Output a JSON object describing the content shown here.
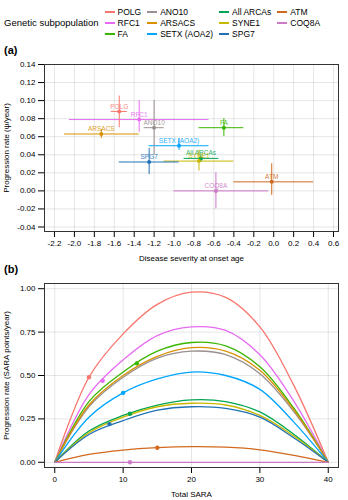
{
  "chart_data": [
    {
      "type": "scatter",
      "title": "(a)",
      "legend": "top",
      "legend_title": "Genetic subpopulation",
      "x_label": "Disease severity at onset age",
      "y_label": "Progression rate (ψ/year)",
      "xlim": [
        -2.3,
        0.65
      ],
      "xticks": [
        {
          "value": -2.2,
          "label": "-2.2"
        },
        {
          "value": -2.0,
          "label": "-2.0"
        },
        {
          "value": -1.8,
          "label": "-1.8"
        },
        {
          "value": -1.6,
          "label": "-1.6"
        },
        {
          "value": -1.4,
          "label": "-1.4"
        },
        {
          "value": -1.2,
          "label": "-1.2"
        },
        {
          "value": -1.0,
          "label": "-1.0"
        },
        {
          "value": -0.8,
          "label": "-0.8"
        },
        {
          "value": -0.6,
          "label": "-0.6"
        },
        {
          "value": -0.4,
          "label": "-0.4"
        },
        {
          "value": -0.2,
          "label": "-0.2"
        },
        {
          "value": 0,
          "label": "0.0"
        },
        {
          "value": 0.2,
          "label": "0.2"
        },
        {
          "value": 0.4,
          "label": "0.4"
        },
        {
          "value": 0.6,
          "label": "0.6"
        }
      ],
      "ylim": [
        -0.045,
        0.14
      ],
      "yticks": [
        {
          "value": -0.04,
          "label": "-0.04"
        },
        {
          "value": -0.02,
          "label": "-0.02"
        },
        {
          "value": 0,
          "label": "0.00"
        },
        {
          "value": 0.02,
          "label": "0.02"
        },
        {
          "value": 0.04,
          "label": "0.04"
        },
        {
          "value": 0.06,
          "label": "0.06"
        },
        {
          "value": 0.08,
          "label": "0.08"
        },
        {
          "value": 0.1,
          "label": "0.10"
        },
        {
          "value": 0.12,
          "label": "0.12"
        },
        {
          "value": 0.14,
          "label": "0.14"
        }
      ],
      "grid": true,
      "series": [
        {
          "name": "POLG",
          "color": "#F8766D",
          "x": -1.55,
          "y": 0.088,
          "x_error": [
            -1.63,
            -1.47
          ],
          "y_error": [
            0.07,
            0.105
          ]
        },
        {
          "name": "RFC1",
          "color": "#E76BF3",
          "x": -1.35,
          "y": 0.079,
          "x_error": [
            -2.05,
            -0.65
          ],
          "y_error": [
            0.065,
            0.1
          ]
        },
        {
          "name": "FA",
          "color": "#39B600",
          "x": -0.5,
          "y": 0.07,
          "x_error": [
            -0.75,
            -0.3
          ],
          "y_error": [
            0.06,
            0.08
          ]
        },
        {
          "name": "ANO10",
          "color": "#9A8F8F",
          "x": -1.2,
          "y": 0.07,
          "x_error": [
            -1.3,
            -1.1
          ],
          "y_error": [
            0.04,
            0.1
          ]
        },
        {
          "name": "ARSACS",
          "color": "#D89000",
          "x": -1.73,
          "y": 0.063,
          "x_error": [
            -2.1,
            -1.35
          ],
          "y_error": [
            0.058,
            0.068
          ]
        },
        {
          "name": "SETX (AOA2)",
          "color": "#00A5FF",
          "x": -0.95,
          "y": 0.05,
          "x_error": [
            -1.25,
            -0.65
          ],
          "y_error": [
            0.045,
            0.058
          ]
        },
        {
          "name": "All ARCAs",
          "color": "#00A651",
          "x": -0.73,
          "y": 0.036,
          "x_error": [
            -0.9,
            -0.55
          ],
          "y_error": [
            0.032,
            0.04
          ]
        },
        {
          "name": "SYNE1",
          "color": "#C9B800",
          "x": -0.75,
          "y": 0.033,
          "x_error": [
            -1.1,
            -0.4
          ],
          "y_error": [
            0.022,
            0.045
          ]
        },
        {
          "name": "SPG7",
          "color": "#2271B5",
          "x": -1.25,
          "y": 0.032,
          "x_error": [
            -1.55,
            -0.95
          ],
          "y_error": [
            0.018,
            0.047
          ]
        },
        {
          "name": "ATM",
          "color": "#D2691E",
          "x": -0.02,
          "y": 0.01,
          "x_error": [
            -0.4,
            0.4
          ],
          "y_error": [
            -0.005,
            0.03
          ]
        },
        {
          "name": "COQ8A",
          "color": "#CC79C7",
          "x": -0.58,
          "y": 0.0,
          "x_error": [
            -1.0,
            -0.05
          ],
          "y_error": [
            -0.02,
            0.02
          ]
        }
      ]
    },
    {
      "type": "line",
      "title": "(b)",
      "x_label": "Total SARA",
      "y_label": "Progression rate (SARA points/year)",
      "x": [
        0,
        5,
        10,
        15,
        20,
        25,
        30,
        35,
        40
      ],
      "xlim": [
        -1.5,
        41.5
      ],
      "xticks": [
        0,
        10,
        20,
        30,
        40
      ],
      "ylim": [
        -0.03,
        1.03
      ],
      "yticks": [
        {
          "value": 0,
          "label": "0.00"
        },
        {
          "value": 0.25,
          "label": "0.25"
        },
        {
          "value": 0.5,
          "label": "0.50"
        },
        {
          "value": 0.75,
          "label": "0.75"
        },
        {
          "value": 1,
          "label": "1.00"
        }
      ],
      "grid": true,
      "marker": "circle",
      "series": [
        {
          "name": "POLG",
          "color": "#F8766D",
          "values": [
            0,
            0.49,
            0.74,
            0.91,
            0.98,
            0.95,
            0.78,
            0.44,
            0
          ],
          "onset": [
            5,
            0.49
          ]
        },
        {
          "name": "RFC1",
          "color": "#E76BF3",
          "values": [
            0,
            0.39,
            0.59,
            0.73,
            0.78,
            0.76,
            0.62,
            0.35,
            0
          ],
          "onset": [
            7,
            0.47
          ]
        },
        {
          "name": "FA",
          "color": "#39B600",
          "values": [
            0,
            0.35,
            0.52,
            0.64,
            0.69,
            0.67,
            0.55,
            0.31,
            0
          ],
          "onset": [
            12,
            0.57
          ]
        },
        {
          "name": "ANO10",
          "color": "#9A8F8F",
          "values": [
            0,
            0.32,
            0.49,
            0.6,
            0.64,
            0.62,
            0.51,
            0.29,
            0
          ],
          "onset": null
        },
        {
          "name": "ARSACS",
          "color": "#D89000",
          "values": [
            0,
            0.33,
            0.5,
            0.61,
            0.66,
            0.64,
            0.53,
            0.3,
            0
          ],
          "onset": null
        },
        {
          "name": "SETX (AOA2)",
          "color": "#00A5FF",
          "values": [
            0,
            0.26,
            0.4,
            0.48,
            0.52,
            0.5,
            0.42,
            0.23,
            0
          ],
          "onset": [
            10,
            0.4
          ]
        },
        {
          "name": "All ARCAs",
          "color": "#00A651",
          "values": [
            0,
            0.18,
            0.27,
            0.33,
            0.36,
            0.35,
            0.29,
            0.16,
            0
          ],
          "onset": [
            11,
            0.28
          ]
        },
        {
          "name": "SYNE1",
          "color": "#C9B800",
          "values": [
            0,
            0.17,
            0.26,
            0.32,
            0.34,
            0.33,
            0.27,
            0.15,
            0
          ],
          "onset": null
        },
        {
          "name": "SPG7",
          "color": "#2271B5",
          "values": [
            0,
            0.16,
            0.24,
            0.3,
            0.32,
            0.31,
            0.26,
            0.14,
            0
          ],
          "onset": [
            8,
            0.22
          ]
        },
        {
          "name": "ATM",
          "color": "#D2691E",
          "values": [
            0,
            0.045,
            0.07,
            0.084,
            0.09,
            0.087,
            0.072,
            0.04,
            0
          ],
          "onset": [
            15,
            0.084
          ]
        },
        {
          "name": "COQ8A",
          "color": "#CC79C7",
          "values": [
            0,
            0,
            0,
            0,
            0,
            0,
            0,
            0,
            0
          ],
          "onset": [
            11,
            0
          ]
        }
      ]
    }
  ]
}
